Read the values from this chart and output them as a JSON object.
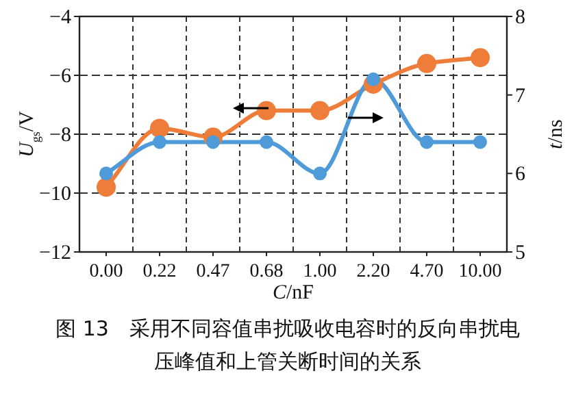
{
  "chart_data": {
    "type": "line",
    "title": "图 13　采用不同容值串扰吸收电容时的反向串扰电压峰值和上管关断时间的关系",
    "xlabel": "C/nF",
    "ylabel": "U$_{gs}$/V",
    "y2label": "t/ns",
    "categories": [
      "0.00",
      "0.22",
      "0.47",
      "0.68",
      "1.00",
      "2.20",
      "4.70",
      "10.00"
    ],
    "series": [
      {
        "color": "#ef7d3a",
        "values": [
          -9.8,
          -7.8,
          -8.1,
          -7.2,
          -7.2,
          -6.3,
          -5.6,
          -5.4
        ]
      },
      {
        "color": "#4f9bd9",
        "axis": "y2",
        "values": [
          6.0,
          6.4,
          6.4,
          6.4,
          6.0,
          7.2,
          6.4,
          6.4
        ]
      }
    ],
    "ylim": [
      -12,
      -4
    ],
    "yticks": [
      -12,
      -10,
      -8,
      -6,
      -4
    ],
    "y2lim": [
      5,
      8
    ],
    "y2ticks": [
      5,
      6,
      7,
      8
    ],
    "grid": true,
    "marker": "circle"
  }
}
